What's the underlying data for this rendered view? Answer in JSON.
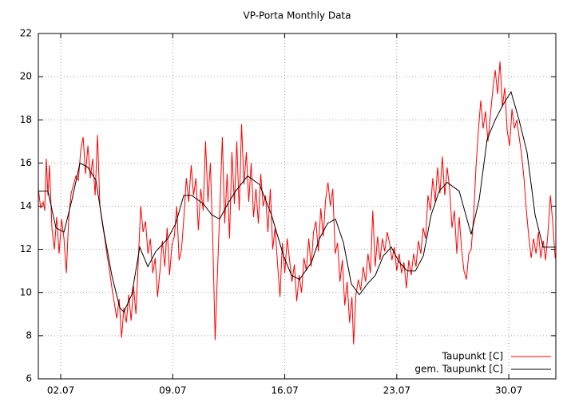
{
  "chart_data": {
    "type": "line",
    "title": "VP-Porta Monthly Data",
    "xlim": [
      0.6,
      32.94
    ],
    "ylim": [
      6,
      22
    ],
    "xticks": [
      {
        "value": 2,
        "label": "02.07"
      },
      {
        "value": 9,
        "label": "09.07"
      },
      {
        "value": 16,
        "label": "16.07"
      },
      {
        "value": 23,
        "label": "23.07"
      },
      {
        "value": 30,
        "label": "30.07"
      }
    ],
    "yticks": [
      6,
      8,
      10,
      12,
      14,
      16,
      18,
      20,
      22
    ],
    "grid": true,
    "legend": "bottom-right",
    "series": [
      {
        "name": "Taupunkt [C]",
        "color": "#ff0000",
        "x": [
          0.6,
          0.75,
          0.9,
          1.0,
          1.1,
          1.2,
          1.3,
          1.45,
          1.6,
          1.75,
          1.9,
          2.05,
          2.2,
          2.35,
          2.5,
          2.65,
          2.8,
          2.95,
          3.1,
          3.25,
          3.4,
          3.55,
          3.7,
          3.85,
          4.0,
          4.15,
          4.3,
          4.45,
          4.6,
          4.75,
          4.9,
          5.05,
          5.2,
          5.35,
          5.5,
          5.65,
          5.8,
          5.95,
          6.1,
          6.25,
          6.4,
          6.55,
          6.7,
          6.85,
          7.0,
          7.15,
          7.3,
          7.45,
          7.6,
          7.75,
          7.9,
          8.05,
          8.2,
          8.35,
          8.5,
          8.65,
          8.8,
          8.95,
          9.1,
          9.25,
          9.4,
          9.55,
          9.7,
          9.85,
          10.0,
          10.15,
          10.3,
          10.45,
          10.6,
          10.75,
          10.9,
          11.05,
          11.2,
          11.35,
          11.5,
          11.65,
          11.8,
          11.95,
          12.1,
          12.25,
          12.4,
          12.55,
          12.7,
          12.85,
          13.0,
          13.15,
          13.3,
          13.45,
          13.6,
          13.75,
          13.9,
          14.05,
          14.2,
          14.35,
          14.5,
          14.65,
          14.8,
          14.95,
          15.1,
          15.25,
          15.4,
          15.55,
          15.7,
          15.85,
          16.0,
          16.15,
          16.3,
          16.45,
          16.6,
          16.75,
          16.9,
          17.05,
          17.2,
          17.35,
          17.5,
          17.65,
          17.8,
          17.95,
          18.1,
          18.25,
          18.4,
          18.55,
          18.7,
          18.85,
          19.0,
          19.15,
          19.3,
          19.45,
          19.6,
          19.75,
          19.9,
          20.05,
          20.2,
          20.3,
          20.45,
          20.6,
          20.75,
          20.9,
          21.05,
          21.2,
          21.35,
          21.5,
          21.65,
          21.8,
          21.95,
          22.1,
          22.25,
          22.4,
          22.55,
          22.7,
          22.85,
          23.0,
          23.15,
          23.3,
          23.45,
          23.6,
          23.75,
          23.9,
          24.05,
          24.2,
          24.35,
          24.5,
          24.65,
          24.8,
          24.95,
          25.1,
          25.25,
          25.4,
          25.55,
          25.7,
          25.85,
          26.0,
          26.15,
          26.3,
          26.45,
          26.6,
          26.75,
          26.9,
          27.05,
          27.2,
          27.35,
          27.5,
          27.65,
          27.8,
          27.95,
          28.1,
          28.25,
          28.4,
          28.55,
          28.7,
          28.85,
          29.0,
          29.15,
          29.3,
          29.45,
          29.6,
          29.75,
          29.9,
          30.05,
          30.2,
          30.35,
          30.5,
          30.65,
          30.8,
          30.95,
          31.1,
          31.25,
          31.4,
          31.55,
          31.7,
          31.85,
          32.0,
          32.15,
          32.3,
          32.45,
          32.6,
          32.75,
          32.9
        ],
        "values": [
          14.8,
          13.9,
          14.2,
          13.8,
          16.2,
          14.5,
          15.9,
          13.0,
          12.0,
          13.5,
          11.8,
          13.4,
          12.5,
          10.9,
          13.5,
          14.6,
          15.0,
          15.4,
          15.2,
          16.6,
          17.2,
          15.5,
          16.8,
          15.3,
          16.2,
          14.5,
          17.3,
          14.0,
          13.2,
          12.5,
          11.7,
          11.0,
          10.2,
          9.5,
          8.8,
          9.7,
          7.9,
          9.3,
          8.6,
          9.9,
          8.7,
          10.3,
          9.0,
          11.5,
          14.0,
          12.8,
          13.3,
          11.8,
          12.5,
          10.9,
          11.6,
          9.8,
          11.0,
          12.4,
          11.2,
          13.0,
          10.8,
          12.2,
          12.6,
          14.0,
          11.5,
          12.0,
          13.5,
          15.3,
          14.2,
          15.9,
          14.5,
          15.3,
          12.9,
          14.8,
          13.8,
          17.0,
          14.2,
          16.0,
          12.5,
          7.8,
          11.0,
          14.0,
          17.2,
          13.2,
          15.5,
          12.5,
          16.5,
          14.1,
          17.0,
          13.8,
          17.8,
          15.0,
          16.5,
          14.2,
          16.0,
          13.5,
          14.8,
          13.2,
          15.5,
          14.0,
          14.5,
          12.8,
          14.8,
          12.0,
          13.0,
          11.3,
          9.8,
          12.3,
          10.9,
          12.5,
          11.5,
          10.5,
          11.3,
          9.6,
          10.8,
          10.0,
          11.6,
          11.0,
          12.5,
          11.2,
          12.8,
          13.3,
          11.9,
          13.9,
          12.6,
          14.3,
          15.1,
          14.0,
          14.8,
          11.8,
          12.3,
          10.5,
          11.5,
          9.4,
          10.5,
          8.6,
          9.8,
          7.6,
          9.9,
          10.6,
          10.1,
          11.2,
          10.5,
          11.8,
          10.9,
          13.8,
          11.2,
          12.6,
          11.5,
          12.5,
          11.9,
          12.8,
          12.3,
          11.5,
          12.1,
          11.0,
          11.8,
          10.9,
          11.4,
          10.2,
          11.5,
          10.8,
          11.8,
          11.2,
          12.4,
          11.8,
          13.0,
          12.5,
          14.5,
          13.8,
          15.3,
          14.2,
          15.8,
          14.6,
          16.3,
          14.5,
          15.8,
          14.8,
          13.0,
          13.8,
          11.8,
          13.5,
          12.0,
          11.0,
          10.6,
          11.8,
          12.0,
          13.5,
          15.8,
          17.5,
          18.9,
          17.6,
          18.4,
          17.0,
          18.2,
          19.4,
          20.3,
          19.2,
          20.7,
          18.6,
          19.5,
          17.5,
          16.8,
          18.5,
          17.6,
          18.0,
          17.2,
          16.4,
          15.3,
          13.8,
          12.6,
          11.6,
          12.5,
          11.8,
          12.8,
          11.6,
          12.4,
          11.5,
          12.8,
          14.5,
          13.2,
          11.6
        ]
      },
      {
        "name": "gem. Taupunkt [C]",
        "color": "#000000",
        "x": [
          0.6,
          1.2,
          1.7,
          2.2,
          2.7,
          3.2,
          3.7,
          4.2,
          4.7,
          5.19,
          5.69,
          5.94,
          6.44,
          6.94,
          7.44,
          7.94,
          8.69,
          9.19,
          9.69,
          10.18,
          10.93,
          11.43,
          11.93,
          12.43,
          12.93,
          13.68,
          14.43,
          15.17,
          15.92,
          16.42,
          16.92,
          17.67,
          18.17,
          18.67,
          19.17,
          19.67,
          20.16,
          20.66,
          21.16,
          21.66,
          22.16,
          22.66,
          23.16,
          23.66,
          24.16,
          24.66,
          25.15,
          25.65,
          26.15,
          26.9,
          27.65,
          28.15,
          28.65,
          29.15,
          29.64,
          30.14,
          30.64,
          31.14,
          31.64,
          32.14,
          32.94
        ],
        "values": [
          14.7,
          14.7,
          13.0,
          12.8,
          14.3,
          16.0,
          15.8,
          15.2,
          12.8,
          10.8,
          9.3,
          9.1,
          9.9,
          12.1,
          11.2,
          11.9,
          12.5,
          13.2,
          14.5,
          14.5,
          14.1,
          13.6,
          13.4,
          14.1,
          14.7,
          15.4,
          15.0,
          13.6,
          11.7,
          10.8,
          10.6,
          11.4,
          12.5,
          13.2,
          13.4,
          12.3,
          10.4,
          9.9,
          10.4,
          10.8,
          11.7,
          12.1,
          11.4,
          11.0,
          11.0,
          11.7,
          13.6,
          14.7,
          15.1,
          14.7,
          12.7,
          14.3,
          17.1,
          18.0,
          18.7,
          19.3,
          18.0,
          16.5,
          13.6,
          12.1,
          12.1
        ]
      }
    ]
  }
}
